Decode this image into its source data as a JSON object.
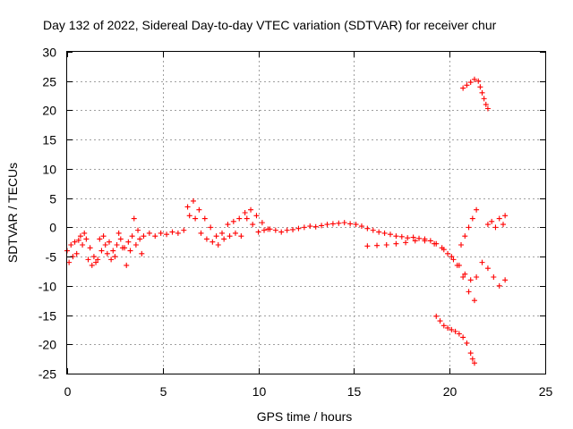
{
  "chart_data": {
    "type": "scatter",
    "title": "Day 132 of 2022, Sidereal Day-to-day VTEC variation (SDTVAR) for receiver chur",
    "xlabel": "GPS time / hours",
    "ylabel": "SDTVAR / TECUs",
    "xlim": [
      0,
      25
    ],
    "ylim": [
      -25,
      30
    ],
    "xticks": [
      "0",
      "5",
      "10",
      "15",
      "20",
      "25"
    ],
    "yticks": [
      "-25",
      "-20",
      "-15",
      "-10",
      "-5",
      "0",
      "5",
      "10",
      "15",
      "20",
      "25",
      "30"
    ],
    "grid": true,
    "marker": "plus",
    "color": "#ff0000",
    "series": [
      {
        "name": "main-track",
        "x": [
          0.0,
          0.2,
          0.4,
          0.6,
          0.8,
          1.0,
          1.2,
          1.4,
          1.6,
          1.8,
          2.0,
          2.2,
          2.4,
          2.6,
          2.8,
          3.0,
          3.2,
          3.4,
          3.6,
          3.8,
          4.0,
          4.3,
          4.6,
          4.9,
          5.2,
          5.5,
          5.8,
          6.1,
          6.4,
          6.7,
          7.0,
          7.3,
          7.6,
          7.9,
          8.2,
          8.5,
          8.8,
          9.1,
          9.4,
          9.7,
          10.0,
          10.3,
          10.6,
          10.9,
          11.2,
          11.5,
          11.8,
          12.1,
          12.4,
          12.7,
          13.0,
          13.3,
          13.6,
          13.9,
          14.2,
          14.5,
          14.8,
          15.1,
          15.4,
          15.7,
          16.0,
          16.3,
          16.6,
          16.9,
          17.2,
          17.5,
          17.8,
          18.1,
          18.4,
          18.7,
          19.0,
          19.3,
          19.6,
          19.9,
          20.2,
          20.5,
          20.8,
          21.1,
          21.4,
          21.7,
          22.0,
          22.3,
          22.6,
          22.9
        ],
        "y": [
          -4.0,
          -3.0,
          -2.5,
          -2.2,
          -3.0,
          -2.0,
          -3.5,
          -5.0,
          -5.5,
          -4.0,
          -3.0,
          -2.5,
          -4.0,
          -3.0,
          -2.0,
          -3.5,
          -2.5,
          -1.5,
          -3.0,
          -2.0,
          -1.5,
          -1.0,
          -1.5,
          -1.0,
          -1.2,
          -0.8,
          -1.0,
          -0.5,
          2.0,
          1.5,
          -1.0,
          -2.0,
          -2.5,
          -3.0,
          -2.0,
          -1.5,
          -1.0,
          -1.5,
          1.5,
          0.5,
          -0.8,
          -0.5,
          -0.3,
          -0.5,
          -0.8,
          -0.5,
          -0.4,
          -0.2,
          0.0,
          0.2,
          0.1,
          0.3,
          0.5,
          0.6,
          0.7,
          0.8,
          0.6,
          0.5,
          0.2,
          -0.2,
          -0.5,
          -0.8,
          -1.0,
          -1.2,
          -1.5,
          -1.6,
          -1.8,
          -1.7,
          -1.9,
          -2.0,
          -2.3,
          -2.8,
          -3.5,
          -4.5,
          -5.5,
          -6.5,
          -8.0,
          -9.0,
          -8.5,
          -6.0,
          -7.0,
          -8.5,
          -10.0,
          -9.0
        ]
      },
      {
        "name": "lower-branch",
        "x": [
          15.7,
          16.2,
          16.7,
          17.2,
          17.7,
          18.2,
          18.7,
          19.2,
          19.7,
          20.1,
          20.4,
          20.7,
          21.0,
          21.3
        ],
        "y": [
          -3.2,
          -3.1,
          -3.0,
          -2.8,
          -2.6,
          -2.3,
          -2.3,
          -2.8,
          -3.8,
          -5.0,
          -6.5,
          -8.5,
          -11.0,
          -12.5
        ]
      },
      {
        "name": "upper-arc",
        "x": [
          6.3,
          6.6,
          6.9,
          7.2,
          7.5,
          7.8,
          8.1,
          8.4,
          8.7,
          9.0,
          9.3,
          9.6,
          9.9,
          10.2,
          10.5
        ],
        "y": [
          3.5,
          4.5,
          3.0,
          1.5,
          0.0,
          -1.5,
          -1.0,
          0.5,
          1.0,
          1.5,
          2.5,
          3.0,
          2.0,
          0.8,
          -0.3
        ]
      },
      {
        "name": "left-scatter",
        "x": [
          0.1,
          0.3,
          0.5,
          0.7,
          0.9,
          1.1,
          1.3,
          1.5,
          1.7,
          1.9,
          2.1,
          2.3,
          2.5,
          2.7,
          2.9,
          3.1,
          3.3,
          3.5,
          3.7,
          3.9
        ],
        "y": [
          -6.0,
          -5.0,
          -4.5,
          -1.5,
          -1.0,
          -5.5,
          -6.5,
          -6.0,
          -2.0,
          -1.5,
          -4.5,
          -5.5,
          -5.0,
          -1.0,
          -3.5,
          -6.5,
          -4.0,
          1.5,
          -0.5,
          -4.5
        ]
      },
      {
        "name": "rise-right",
        "x": [
          20.6,
          20.8,
          21.0,
          21.2,
          21.4,
          22.0,
          22.2,
          22.4,
          22.6,
          22.8,
          22.9
        ],
        "y": [
          -3.0,
          -1.5,
          0.0,
          1.5,
          3.0,
          0.5,
          1.0,
          0.0,
          1.5,
          0.5,
          2.0
        ]
      },
      {
        "name": "top-segment",
        "x": [
          20.7,
          20.9,
          21.1,
          21.3,
          21.5,
          21.6,
          21.7,
          21.8,
          21.9,
          22.0
        ],
        "y": [
          23.8,
          24.3,
          24.8,
          25.3,
          25.0,
          24.0,
          23.0,
          22.0,
          21.0,
          20.3
        ]
      },
      {
        "name": "bottom-segment",
        "x": [
          19.3,
          19.5,
          19.7,
          19.9,
          20.1,
          20.3,
          20.5,
          20.7,
          20.9,
          21.1,
          21.2,
          21.3
        ],
        "y": [
          -15.2,
          -16.0,
          -16.8,
          -17.2,
          -17.5,
          -17.8,
          -18.2,
          -18.8,
          -19.8,
          -21.5,
          -22.5,
          -23.2
        ]
      }
    ]
  }
}
